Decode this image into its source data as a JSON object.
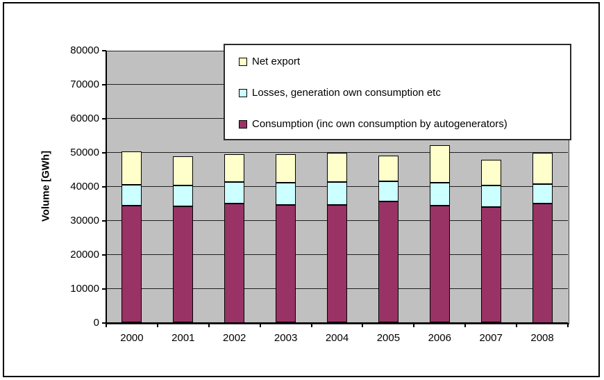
{
  "chart_data": {
    "type": "bar",
    "stacked": true,
    "title": "",
    "xlabel": "",
    "ylabel": "Volume [GWh]",
    "ylim": [
      0,
      80000
    ],
    "ytick_step": 10000,
    "grid": true,
    "plot_bg_color": "#c0c0c0",
    "categories": [
      "2000",
      "2001",
      "2002",
      "2003",
      "2004",
      "2005",
      "2006",
      "2007",
      "2008"
    ],
    "series": [
      {
        "name": "Consumption (inc own consumption by autogenerators)",
        "color": "#993366",
        "values": [
          34500,
          34300,
          35000,
          34700,
          34600,
          35700,
          34500,
          34100,
          35000
        ]
      },
      {
        "name": "Losses, generation own consumption etc",
        "color": "#ccffff",
        "values": [
          6000,
          6100,
          6400,
          6500,
          6700,
          5900,
          6600,
          6300,
          5700
        ]
      },
      {
        "name": "Net export",
        "color": "#ffffcc",
        "values": [
          9800,
          8600,
          8100,
          8300,
          8600,
          7500,
          11200,
          7600,
          9200
        ]
      }
    ],
    "totals": [
      50300,
      49000,
      49500,
      49500,
      49900,
      49100,
      52300,
      48000,
      49900
    ],
    "legend": {
      "position": "top-right",
      "order": [
        "Net export",
        "Losses, generation own consumption etc",
        "Consumption (inc own consumption by autogenerators)"
      ]
    }
  }
}
